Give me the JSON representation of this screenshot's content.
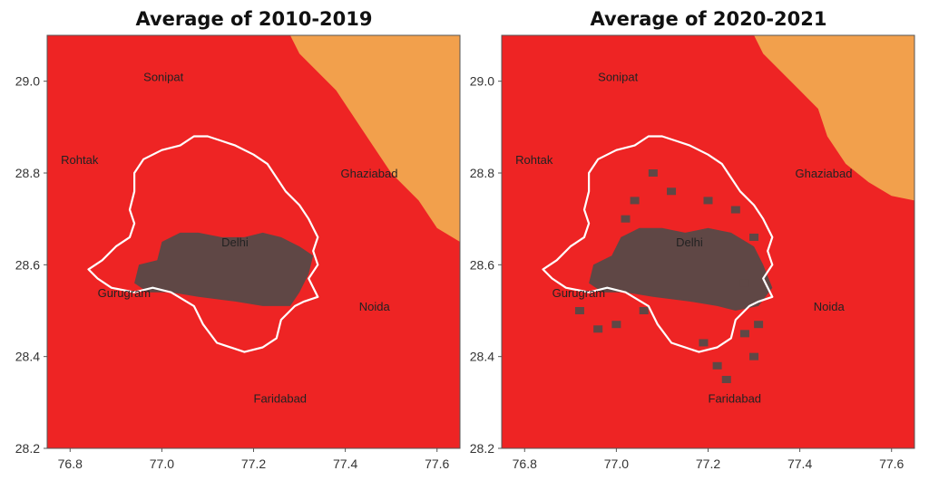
{
  "colors": {
    "background_zone": "#ee2424",
    "urban_core": "#5f4745",
    "outer_zone": "#f2a04c",
    "boundary": "#ffffff",
    "frame": "#555555"
  },
  "axes": {
    "xlim": [
      76.75,
      77.65
    ],
    "ylim": [
      28.2,
      29.1
    ],
    "x_ticks": [
      "76.8",
      "77.0",
      "77.2",
      "77.4",
      "77.6"
    ],
    "y_ticks": [
      "29.0",
      "28.8",
      "28.6",
      "28.4",
      "28.2"
    ]
  },
  "panels": [
    {
      "title": "Average of 2010-2019",
      "cities": [
        {
          "name": "Sonipat",
          "lon": 76.96,
          "lat": 29.0
        },
        {
          "name": "Rohtak",
          "lon": 76.78,
          "lat": 28.82
        },
        {
          "name": "Ghaziabad",
          "lon": 77.39,
          "lat": 28.79
        },
        {
          "name": "Delhi",
          "lon": 77.13,
          "lat": 28.64
        },
        {
          "name": "Gurugram",
          "lon": 76.86,
          "lat": 28.53
        },
        {
          "name": "Noida",
          "lon": 77.43,
          "lat": 28.5
        },
        {
          "name": "Faridabad",
          "lon": 77.2,
          "lat": 28.3
        }
      ]
    },
    {
      "title": "Average of 2020-2021",
      "cities": [
        {
          "name": "Sonipat",
          "lon": 76.96,
          "lat": 29.0
        },
        {
          "name": "Rohtak",
          "lon": 76.78,
          "lat": 28.82
        },
        {
          "name": "Ghaziabad",
          "lon": 77.39,
          "lat": 28.79
        },
        {
          "name": "Delhi",
          "lon": 77.13,
          "lat": 28.64
        },
        {
          "name": "Gurugram",
          "lon": 76.86,
          "lat": 28.53
        },
        {
          "name": "Noida",
          "lon": 77.43,
          "lat": 28.5
        },
        {
          "name": "Faridabad",
          "lon": 77.2,
          "lat": 28.3
        }
      ]
    }
  ]
}
